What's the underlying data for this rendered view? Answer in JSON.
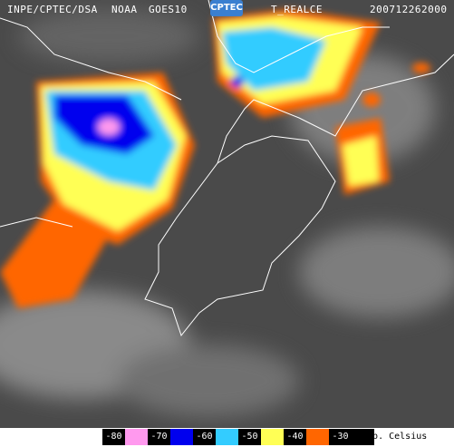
{
  "header": {
    "source": "INPE/CPTEC/DSA",
    "agency": "NOAA",
    "satellite": "GOES10",
    "logo": "CPTEC",
    "product": "T_REALCE",
    "timestamp": "200712262000"
  },
  "legend": {
    "items": [
      {
        "label": "-80",
        "color": "#ff99ee"
      },
      {
        "label": "-70",
        "color": "#0000ee"
      },
      {
        "label": "-60",
        "color": "#33ccff"
      },
      {
        "label": "-50",
        "color": "#ffff55"
      },
      {
        "label": "-40",
        "color": "#ff6600"
      },
      {
        "label": "-30",
        "color": "#000000"
      }
    ],
    "unit": "Temp. Celsius"
  }
}
